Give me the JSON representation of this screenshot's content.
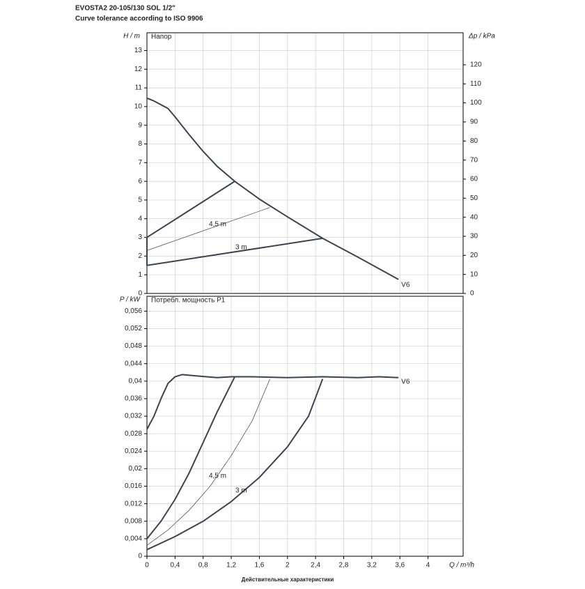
{
  "header": {
    "title": "EVOSTA2 20-105/130 SOL 1/2\"",
    "subtitle": "Curve tolerance according to ISO 9906"
  },
  "footer": "Действительные характеристики",
  "chart_data": [
    {
      "type": "line",
      "title": "Напор",
      "ylabel": "H / m",
      "y2label": "Δp / kPa",
      "xlim": [
        0,
        4.5
      ],
      "ylim": [
        0,
        13.95
      ],
      "y2lim": [
        0,
        136.8
      ],
      "yticks": [
        0,
        1,
        2,
        3,
        4,
        5,
        6,
        7,
        8,
        9,
        10,
        11,
        12,
        13
      ],
      "y2ticks": [
        0,
        10,
        20,
        30,
        40,
        50,
        60,
        70,
        80,
        90,
        100,
        110,
        120
      ],
      "grid": true,
      "series": [
        {
          "name": "V6",
          "color": "#3a4450",
          "line_width": 2,
          "x": [
            0,
            0.1,
            0.2,
            0.3,
            0.4,
            0.6,
            0.8,
            1.0,
            1.25,
            1.6,
            2.0,
            2.5,
            3.0,
            3.58
          ],
          "values": [
            10.45,
            10.3,
            10.1,
            9.9,
            9.45,
            8.5,
            7.6,
            6.8,
            6.0,
            5.05,
            4.1,
            2.95,
            1.95,
            0.75
          ]
        },
        {
          "color": "#3a4450",
          "line_width": 2,
          "x": [
            0,
            0,
            1.25
          ],
          "values": [
            1.5,
            3.0,
            6.0
          ]
        },
        {
          "label": "4,5 m",
          "color": "#555555",
          "line_width": 0.8,
          "x": [
            0,
            1.75
          ],
          "values": [
            2.3,
            4.6
          ]
        },
        {
          "label": "3 m",
          "color": "#3a4450",
          "line_width": 2,
          "x": [
            0,
            2.5
          ],
          "values": [
            1.5,
            2.95
          ]
        }
      ]
    },
    {
      "type": "line",
      "title": "Потребл. мощность P1",
      "ylabel": "P / kW",
      "xlabel": "Q / m³/h",
      "xlim": [
        0,
        4.5
      ],
      "ylim": [
        0,
        0.0594
      ],
      "xticks": [
        0,
        {
          "value": 0.4,
          "label": "0,4"
        },
        {
          "value": 0.8,
          "label": "0,8"
        },
        {
          "value": 1.2,
          "label": "1,2"
        },
        {
          "value": 1.6,
          "label": "1,6"
        },
        2,
        {
          "value": 2.4,
          "label": "2,4"
        },
        {
          "value": 2.8,
          "label": "2,8"
        },
        {
          "value": 3.2,
          "label": "3,2"
        },
        {
          "value": 3.6,
          "label": "3,6"
        },
        4
      ],
      "yticks": [
        0,
        {
          "value": 0.004,
          "label": "0,004"
        },
        {
          "value": 0.008,
          "label": "0,008"
        },
        {
          "value": 0.012,
          "label": "0,012"
        },
        {
          "value": 0.016,
          "label": "0,016"
        },
        {
          "value": 0.02,
          "label": "0,02"
        },
        {
          "value": 0.024,
          "label": "0,024"
        },
        {
          "value": 0.028,
          "label": "0,028"
        },
        {
          "value": 0.032,
          "label": "0,032"
        },
        {
          "value": 0.036,
          "label": "0,036"
        },
        {
          "value": 0.04,
          "label": "0,04"
        },
        {
          "value": 0.044,
          "label": "0,044"
        },
        {
          "value": 0.048,
          "label": "0,048"
        },
        {
          "value": 0.052,
          "label": "0,052"
        },
        {
          "value": 0.056,
          "label": "0,056"
        }
      ],
      "grid": true,
      "series": [
        {
          "name": "V6",
          "color": "#3a4450",
          "line_width": 2,
          "x": [
            0,
            0.1,
            0.2,
            0.3,
            0.4,
            0.5,
            0.7,
            1.0,
            1.2,
            1.5,
            2.0,
            2.5,
            3.0,
            3.3,
            3.58
          ],
          "values": [
            0.029,
            0.032,
            0.036,
            0.0395,
            0.041,
            0.0415,
            0.0412,
            0.0408,
            0.041,
            0.041,
            0.0408,
            0.041,
            0.0408,
            0.041,
            0.0408
          ]
        },
        {
          "color": "#3a4450",
          "line_width": 2,
          "x": [
            0,
            0.2,
            0.4,
            0.6,
            0.8,
            1.0,
            1.25
          ],
          "values": [
            0.004,
            0.008,
            0.013,
            0.019,
            0.026,
            0.033,
            0.041
          ]
        },
        {
          "label": "4,5 m",
          "color": "#555555",
          "line_width": 0.8,
          "x": [
            0,
            0.3,
            0.6,
            0.9,
            1.2,
            1.5,
            1.75
          ],
          "values": [
            0.0025,
            0.006,
            0.0105,
            0.016,
            0.023,
            0.031,
            0.0405
          ]
        },
        {
          "label": "3 m",
          "color": "#3a4450",
          "line_width": 2,
          "x": [
            0,
            0.4,
            0.8,
            1.2,
            1.6,
            2.0,
            2.3,
            2.5
          ],
          "values": [
            0.0015,
            0.0045,
            0.008,
            0.0125,
            0.018,
            0.025,
            0.032,
            0.0405
          ]
        }
      ]
    }
  ]
}
